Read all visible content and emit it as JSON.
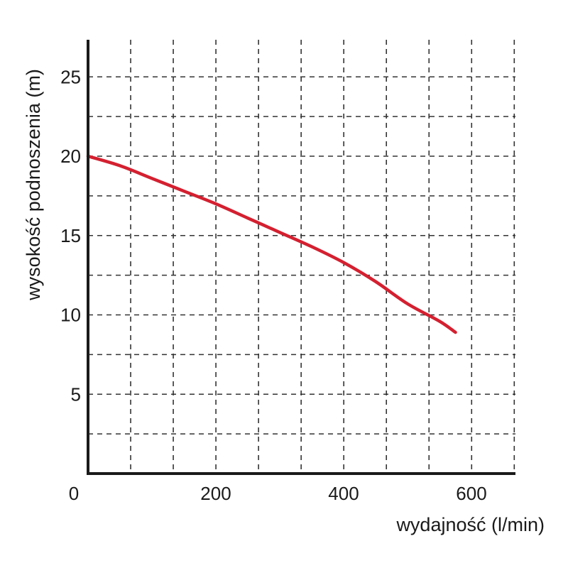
{
  "chart_data": {
    "type": "line",
    "title": "",
    "xlabel": "wydajność (l/min)",
    "ylabel": "wysokość podnoszenia (m)",
    "xlim": [
      0,
      660
    ],
    "ylim": [
      0,
      27.5
    ],
    "x_ticks": [
      0,
      200,
      400,
      600
    ],
    "x_tick_labels": [
      "0",
      "200",
      "400",
      "600"
    ],
    "y_ticks": [
      5,
      10,
      15,
      20,
      25
    ],
    "y_tick_labels": [
      "5",
      "10",
      "15",
      "20",
      "25"
    ],
    "grid": true,
    "grid_style": "dashed",
    "x_grid_step": 66.7,
    "y_grid_step": 2.5,
    "series": [
      {
        "color": "#d42030",
        "x": [
          0,
          50,
          100,
          150,
          200,
          250,
          300,
          350,
          400,
          450,
          500,
          550,
          575
        ],
        "y": [
          20.0,
          19.4,
          18.6,
          17.8,
          17.0,
          16.1,
          15.2,
          14.3,
          13.3,
          12.1,
          10.7,
          9.6,
          8.9
        ]
      }
    ]
  }
}
